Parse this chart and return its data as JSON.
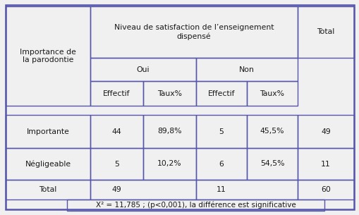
{
  "header_main": "Niveau de satisfaction de l’enseignement\ndispensé",
  "col_header_left": "Importance de\nla parodontie",
  "col_header_total": "Total",
  "oui_label": "Oui",
  "non_label": "Non",
  "effectif_label": "Effectif",
  "taux_label": "Taux%",
  "rows": [
    {
      "label": "Importante",
      "oui_eff": "44",
      "oui_taux": "89,8%",
      "non_eff": "5",
      "non_taux": "45,5%",
      "total": "49"
    },
    {
      "label": "Négligeable",
      "oui_eff": "5",
      "oui_taux": "10,2%",
      "non_eff": "6",
      "non_taux": "54,5%",
      "total": "11"
    }
  ],
  "total_row": {
    "label": "Total",
    "oui_eff": "49",
    "non_eff": "11",
    "total": "60"
  },
  "footnote": "X² = 11,785 ; (p<0,001), la différence est significative",
  "border_color": "#5555aa",
  "text_color": "#1a1a1a",
  "bg_color": "#f0f0f0",
  "font_size": 7.8
}
